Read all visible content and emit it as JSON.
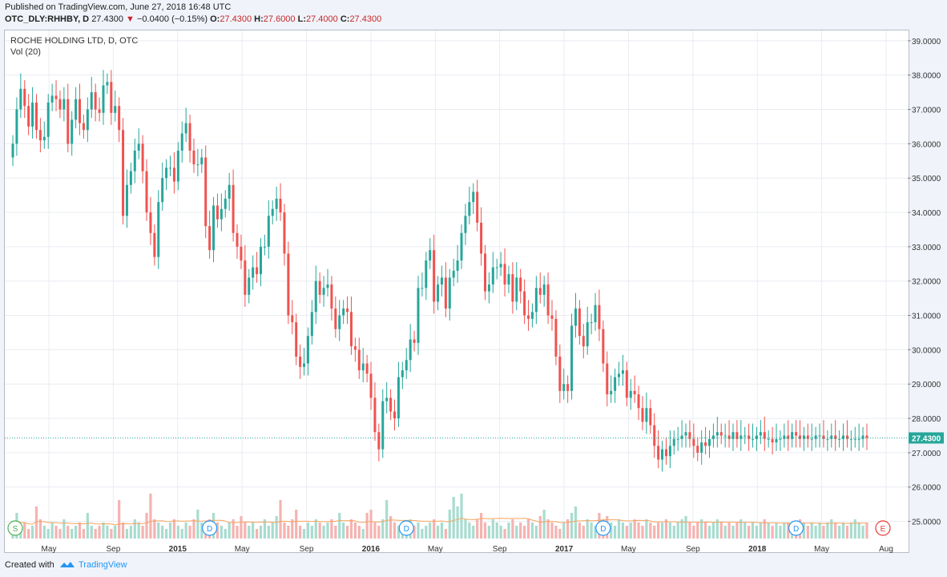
{
  "header": {
    "published": "Published on TradingView.com, June 27, 2018 16:48 UTC",
    "symbol": "OTC_DLY:RHHBY, D",
    "last": "27.4300",
    "change": "−0.0400 (−0.15%)",
    "o_label": "O:",
    "o_value": "27.4300",
    "h_label": "H:",
    "h_value": "27.6000",
    "l_label": "L:",
    "l_value": "27.4000",
    "c_label": "C:",
    "c_value": "27.4300"
  },
  "legend": {
    "title": "ROCHE HOLDING LTD, D, OTC",
    "volume": "Vol (20)"
  },
  "footer": {
    "created_with": "Created with",
    "brand": "TradingView"
  },
  "colors": {
    "up": "#26a69a",
    "down": "#ef5350",
    "vol_up": "#a8dccf",
    "vol_down": "#f5b3b1",
    "vol_ma": "#f7a35c",
    "grid": "#e9ecf2",
    "last_line": "#26a69a",
    "event_green": "#4caf50",
    "event_blue": "#2196f3",
    "event_red": "#e53935"
  },
  "chart_data": {
    "type": "candlestick",
    "y_range": [
      24.5,
      39.3
    ],
    "y_ticks": [
      "25.0000",
      "26.0000",
      "27.0000",
      "28.0000",
      "29.0000",
      "30.0000",
      "31.0000",
      "32.0000",
      "33.0000",
      "34.0000",
      "35.0000",
      "36.0000",
      "37.0000",
      "38.0000",
      "39.0000"
    ],
    "x_ticks": [
      "May",
      "Sep",
      "2015",
      "May",
      "Sep",
      "2016",
      "May",
      "Sep",
      "2017",
      "May",
      "Sep",
      "2018",
      "May",
      "Aug"
    ],
    "bold_x_ticks": [
      "2015",
      "2016",
      "2017",
      "2018"
    ],
    "last_price_label": "27.4300",
    "last_price": 27.43,
    "events": [
      {
        "label": "S",
        "index": 0
      },
      {
        "label": "D",
        "index": 50
      },
      {
        "label": "D",
        "index": 100
      },
      {
        "label": "D",
        "index": 150
      },
      {
        "label": "D",
        "index": 199
      },
      {
        "label": "E",
        "index": 217
      }
    ],
    "vol_scale_max": 30,
    "close": [
      36.0,
      37.0,
      37.6,
      37.1,
      36.5,
      37.2,
      36.4,
      36.1,
      36.2,
      37.2,
      37.4,
      37.3,
      37.0,
      37.3,
      36.0,
      36.7,
      37.3,
      36.6,
      36.4,
      37.0,
      37.5,
      37.0,
      36.9,
      37.7,
      37.8,
      36.9,
      37.1,
      36.4,
      33.9,
      34.8,
      35.2,
      35.8,
      36.0,
      35.2,
      34.0,
      33.4,
      32.7,
      34.3,
      35.0,
      35.3,
      35.3,
      34.9,
      35.8,
      36.3,
      36.6,
      35.8,
      35.4,
      35.4,
      35.6,
      33.6,
      32.9,
      34.2,
      33.8,
      34.1,
      34.4,
      34.8,
      33.4,
      33.0,
      32.6,
      31.6,
      32.1,
      32.4,
      32.2,
      33.0,
      33.0,
      33.9,
      34.1,
      34.4,
      34.0,
      32.8,
      31.0,
      30.8,
      29.8,
      29.5,
      29.6,
      30.4,
      31.1,
      32.0,
      31.6,
      31.8,
      31.9,
      31.2,
      30.6,
      31.0,
      31.2,
      31.1,
      30.1,
      30.0,
      29.4,
      29.6,
      29.3,
      28.6,
      27.6,
      27.1,
      28.5,
      28.6,
      28.2,
      28.0,
      29.2,
      29.4,
      29.7,
      30.3,
      30.2,
      31.8,
      31.8,
      32.6,
      32.9,
      31.4,
      31.9,
      32.1,
      31.2,
      32.1,
      32.3,
      32.6,
      33.4,
      33.9,
      34.3,
      34.6,
      33.7,
      32.8,
      31.7,
      31.9,
      32.4,
      32.4,
      32.5,
      31.9,
      32.2,
      31.4,
      32.1,
      31.7,
      31.0,
      30.9,
      31.1,
      31.8,
      31.6,
      31.9,
      31.0,
      30.9,
      29.8,
      28.8,
      29.0,
      28.8,
      30.7,
      31.2,
      30.4,
      30.1,
      30.8,
      30.8,
      31.3,
      30.6,
      29.6,
      28.7,
      28.8,
      29.2,
      29.3,
      29.4,
      28.6,
      28.8,
      28.7,
      28.3,
      27.9,
      28.3,
      27.8,
      27.2,
      26.8,
      27.1,
      26.9,
      27.2,
      27.4,
      27.4,
      27.5,
      27.6,
      27.4,
      27.2,
      27.0,
      27.3,
      27.2,
      27.4,
      27.5,
      27.6,
      27.5,
      27.5,
      27.4,
      27.6,
      27.4,
      27.5,
      27.5,
      27.4,
      27.4,
      27.5,
      27.6,
      27.4,
      27.4,
      27.3,
      27.4,
      27.4,
      27.5,
      27.4,
      27.6,
      27.5,
      27.4,
      27.5,
      27.4,
      27.4,
      27.5,
      27.5,
      27.4,
      27.4,
      27.5,
      27.4,
      27.4,
      27.5,
      27.4,
      27.4,
      27.4,
      27.4,
      27.5,
      27.43
    ],
    "volume": [
      3,
      8,
      4,
      5,
      3,
      4,
      10,
      6,
      4,
      3,
      5,
      4,
      3,
      6,
      4,
      3,
      4,
      5,
      3,
      8,
      4,
      3,
      4,
      5,
      4,
      3,
      4,
      12,
      5,
      3,
      4,
      6,
      5,
      4,
      8,
      14,
      6,
      5,
      4,
      3,
      5,
      6,
      4,
      3,
      5,
      4,
      6,
      9,
      5,
      4,
      6,
      8,
      5,
      4,
      3,
      5,
      6,
      4,
      7,
      5,
      4,
      5,
      3,
      4,
      6,
      4,
      5,
      7,
      12,
      5,
      4,
      6,
      9,
      4,
      3,
      5,
      4,
      6,
      5,
      4,
      5,
      6,
      4,
      8,
      5,
      4,
      6,
      5,
      4,
      3,
      8,
      9,
      5,
      4,
      6,
      12,
      7,
      5,
      4,
      3,
      5,
      6,
      4,
      5,
      3,
      4,
      5,
      6,
      4,
      5,
      3,
      9,
      13,
      10,
      14,
      6,
      5,
      4,
      6,
      8,
      5,
      4,
      6,
      5,
      4,
      3,
      5,
      6,
      4,
      5,
      4,
      6,
      5,
      4,
      7,
      9,
      6,
      5,
      4,
      3,
      5,
      6,
      8,
      10,
      5,
      4,
      6,
      5,
      4,
      8,
      6,
      7,
      5,
      4,
      6,
      5,
      4,
      5,
      6,
      5,
      4,
      6,
      5,
      4,
      5,
      5,
      6,
      5,
      4,
      5,
      6,
      7,
      5,
      4,
      5,
      6,
      5,
      4,
      5,
      6,
      5,
      4,
      5,
      4,
      5,
      6,
      5,
      4,
      5,
      4,
      5,
      6,
      5,
      4,
      5,
      4,
      5,
      5,
      4,
      5,
      6,
      5,
      4,
      5,
      4,
      5,
      4,
      5,
      6,
      5,
      4,
      5,
      4,
      5,
      6,
      5,
      4,
      5
    ]
  }
}
